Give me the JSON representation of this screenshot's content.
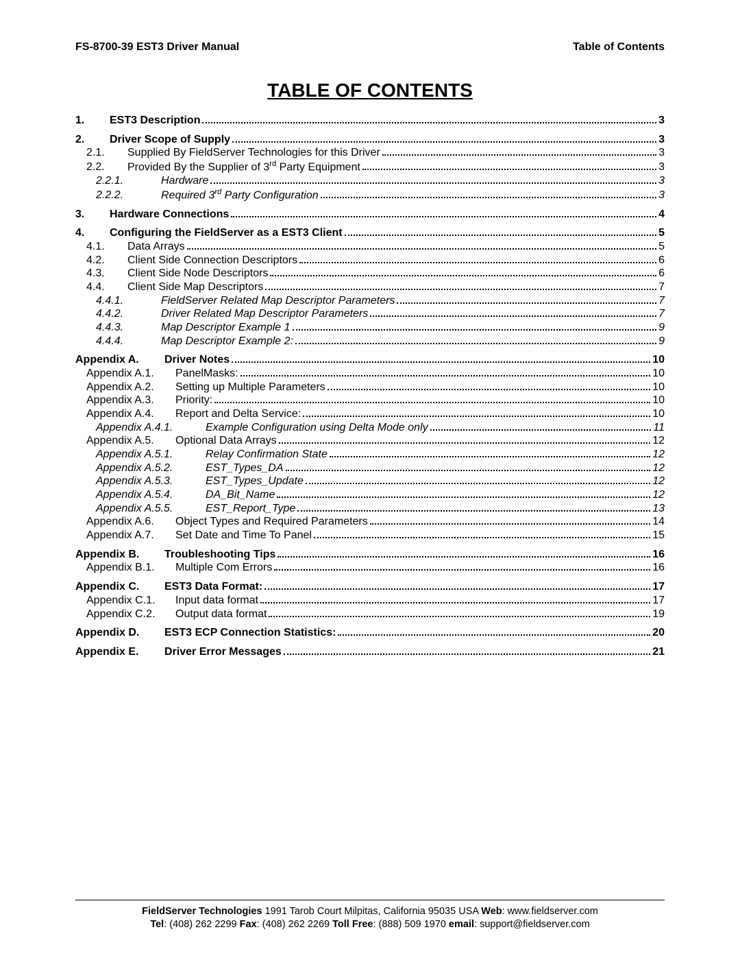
{
  "header": {
    "left": "FS-8700-39 EST3 Driver Manual",
    "right": "Table of Contents"
  },
  "title": "TABLE OF CONTENTS",
  "groups": [
    [
      {
        "lvl": "ind0",
        "bold": true,
        "label": "1.",
        "text": "EST3 Description",
        "page": "3"
      }
    ],
    [
      {
        "lvl": "ind0",
        "bold": true,
        "label": "2.",
        "text": "Driver Scope of Supply",
        "page": "3"
      },
      {
        "lvl": "ind1",
        "label": "2.1.",
        "text": "Supplied By FieldServer Technologies for this Driver",
        "page": "3"
      },
      {
        "lvl": "ind1",
        "label": "2.2.",
        "text": "Provided By the Supplier of 3<sup>rd</sup> Party Equipment",
        "page": "3"
      },
      {
        "lvl": "ind2",
        "ital": true,
        "label": "2.2.1.",
        "text": "Hardware",
        "page": "3"
      },
      {
        "lvl": "ind2",
        "ital": true,
        "label": "2.2.2.",
        "text": "Required 3<sup>rd</sup> Party Configuration",
        "page": "3"
      }
    ],
    [
      {
        "lvl": "ind0",
        "bold": true,
        "label": "3.",
        "text": "Hardware Connections",
        "page": "4"
      }
    ],
    [
      {
        "lvl": "ind0",
        "bold": true,
        "label": "4.",
        "text": "Configuring the FieldServer as a EST3 Client",
        "page": "5"
      },
      {
        "lvl": "ind1",
        "label": "4.1.",
        "text": "Data Arrays",
        "page": "5"
      },
      {
        "lvl": "ind1",
        "label": "4.2.",
        "text": "Client Side Connection Descriptors",
        "page": "6"
      },
      {
        "lvl": "ind1",
        "label": "4.3.",
        "text": "Client Side Node Descriptors",
        "page": "6"
      },
      {
        "lvl": "ind1",
        "label": "4.4.",
        "text": "Client Side Map Descriptors",
        "page": "7"
      },
      {
        "lvl": "ind2",
        "ital": true,
        "label": "4.4.1.",
        "text": "FieldServer Related Map Descriptor Parameters",
        "page": "7"
      },
      {
        "lvl": "ind2",
        "ital": true,
        "label": "4.4.2.",
        "text": "Driver Related Map Descriptor Parameters",
        "page": "7"
      },
      {
        "lvl": "ind2",
        "ital": true,
        "label": "4.4.3.",
        "text": "Map Descriptor Example 1",
        "page": "9"
      },
      {
        "lvl": "ind2",
        "ital": true,
        "label": "4.4.4.",
        "text": "Map Descriptor Example 2:",
        "page": "9"
      }
    ],
    [
      {
        "lvl": "apx0",
        "bold": true,
        "label": "Appendix A.",
        "text": "Driver Notes",
        "page": "10"
      },
      {
        "lvl": "apx1",
        "label": "Appendix A.1.",
        "text": "PanelMasks:",
        "page": "10"
      },
      {
        "lvl": "apx1",
        "label": "Appendix A.2.",
        "text": "Setting up Multiple Parameters",
        "page": "10"
      },
      {
        "lvl": "apx1",
        "label": "Appendix A.3.",
        "text": "Priority:",
        "page": "10"
      },
      {
        "lvl": "apx1",
        "label": "Appendix A.4.",
        "text": "Report and Delta Service:",
        "page": "10"
      },
      {
        "lvl": "apx2",
        "ital": true,
        "label": "Appendix A.4.1.",
        "text": "Example Configuration using Delta Mode only",
        "page": "11"
      },
      {
        "lvl": "apx1",
        "label": "Appendix A.5.",
        "text": "Optional Data Arrays",
        "page": "12"
      },
      {
        "lvl": "apx2",
        "ital": true,
        "label": "Appendix A.5.1.",
        "text": "Relay Confirmation State",
        "page": "12"
      },
      {
        "lvl": "apx2",
        "ital": true,
        "label": "Appendix A.5.2.",
        "text": "EST_Types_DA",
        "page": "12"
      },
      {
        "lvl": "apx2",
        "ital": true,
        "label": "Appendix A.5.3.",
        "text": "EST_Types_Update",
        "page": "12"
      },
      {
        "lvl": "apx2",
        "ital": true,
        "label": "Appendix A.5.4.",
        "text": "DA_Bit_Name",
        "page": "12"
      },
      {
        "lvl": "apx2",
        "ital": true,
        "label": "Appendix A.5.5.",
        "text": "EST_Report_Type",
        "page": "13"
      },
      {
        "lvl": "apx1",
        "label": "Appendix A.6.",
        "text": "Object Types and Required Parameters",
        "page": "14"
      },
      {
        "lvl": "apx1",
        "label": "Appendix A.7.",
        "text": "Set Date and Time To Panel",
        "page": "15"
      }
    ],
    [
      {
        "lvl": "apx0",
        "bold": true,
        "label": "Appendix B.",
        "text": "Troubleshooting Tips",
        "page": "16"
      },
      {
        "lvl": "apx1",
        "label": "Appendix B.1.",
        "text": "Multiple Com Errors",
        "page": "16"
      }
    ],
    [
      {
        "lvl": "apx0",
        "bold": true,
        "label": "Appendix C.",
        "text": "EST3 Data Format:",
        "page": "17"
      },
      {
        "lvl": "apx1",
        "label": "Appendix C.1.",
        "text": "Input data format",
        "page": "17"
      },
      {
        "lvl": "apx1",
        "label": "Appendix C.2.",
        "text": "Output data format",
        "page": "19"
      }
    ],
    [
      {
        "lvl": "apx0",
        "bold": true,
        "label": "Appendix D.",
        "text": "EST3 ECP Connection Statistics:",
        "page": "20"
      }
    ],
    [
      {
        "lvl": "apx0",
        "bold": true,
        "label": "Appendix E.",
        "text": "Driver Error Messages",
        "page": "21"
      }
    ]
  ],
  "footer": {
    "company": "FieldServer Technologies",
    "address": " 1991 Tarob Court Milpitas, California 95035 USA   ",
    "web_label": "Web",
    "web": ": www.fieldserver.com",
    "tel_label": "Tel",
    "tel": ": (408) 262 2299   ",
    "fax_label": "Fax",
    "fax": ": (408) 262 2269   ",
    "tollfree_label": "Toll Free",
    "tollfree": ": (888) 509 1970   ",
    "email_label": "email",
    "email": ": support@fieldserver.com"
  }
}
